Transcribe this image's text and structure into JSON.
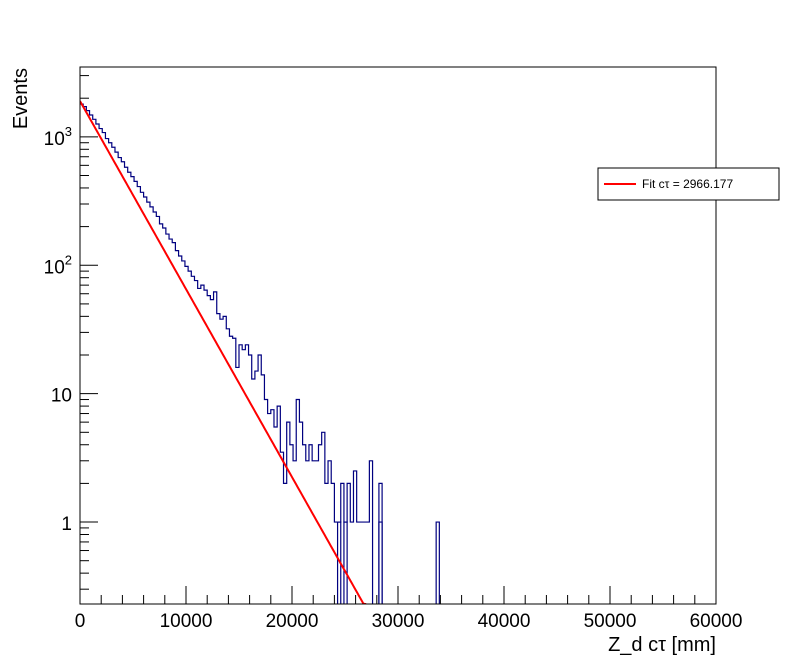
{
  "chart_data": {
    "type": "bar",
    "style": "step-histogram-with-fit",
    "title": "",
    "xlabel": "Z_d cτ [mm]",
    "ylabel": "Events",
    "xlim": [
      0,
      60000
    ],
    "ylim": [
      0.23,
      3500
    ],
    "yscale": "log",
    "grid": false,
    "x_ticks": [
      {
        "value": 0,
        "label": "0"
      },
      {
        "value": 10000,
        "label": "10000"
      },
      {
        "value": 20000,
        "label": "20000"
      },
      {
        "value": 30000,
        "label": "30000"
      },
      {
        "value": 40000,
        "label": "40000"
      },
      {
        "value": 50000,
        "label": "50000"
      },
      {
        "value": 60000,
        "label": "60000"
      }
    ],
    "y_ticks": [
      {
        "value": 1,
        "label": "1"
      },
      {
        "value": 10,
        "label": "10"
      },
      {
        "value": 100,
        "label": "10",
        "exp": "2"
      },
      {
        "value": 1000,
        "label": "10",
        "exp": "3"
      }
    ],
    "histogram": {
      "name": "Z_d cτ",
      "color": "#000080",
      "bin_edges_start": 0,
      "bin_width": 300,
      "values": [
        1800,
        1720,
        1600,
        1480,
        1370,
        1260,
        1160,
        1080,
        970,
        900,
        830,
        760,
        690,
        640,
        580,
        530,
        490,
        450,
        410,
        370,
        340,
        310,
        285,
        260,
        240,
        210,
        195,
        175,
        160,
        150,
        130,
        118,
        108,
        98,
        90,
        82,
        76,
        66,
        70,
        64,
        58,
        54,
        62,
        42,
        38,
        40,
        32,
        28,
        27,
        16,
        24,
        22,
        24,
        20,
        13,
        15,
        20,
        14,
        9,
        7,
        7.5,
        5.5,
        8,
        3.5,
        2,
        6,
        4,
        3,
        9,
        6,
        4,
        3,
        4,
        3,
        3,
        4,
        5,
        2,
        3,
        2,
        1,
        1,
        2,
        1,
        2,
        1,
        2.5,
        1,
        1,
        1,
        1,
        3,
        0,
        0,
        1,
        0,
        0,
        0,
        0,
        0,
        0,
        0,
        0,
        0,
        0,
        0,
        0,
        0,
        0,
        0,
        0,
        0,
        0,
        0,
        0,
        0,
        0,
        0,
        0,
        0,
        0,
        0,
        0,
        0,
        0,
        0,
        0,
        0,
        0,
        0,
        0,
        0,
        0,
        0,
        0,
        0,
        0,
        0,
        0,
        0,
        0,
        0,
        0,
        0,
        0,
        0,
        0,
        0,
        0,
        0,
        0,
        0,
        0,
        0,
        0,
        0,
        0,
        0,
        0,
        0,
        0,
        0,
        0,
        0,
        0,
        0,
        0,
        0,
        0,
        0,
        0,
        0,
        0,
        0,
        0,
        0,
        0,
        0,
        0,
        0,
        0,
        0,
        0,
        0,
        0,
        0,
        0,
        0,
        0,
        0,
        0,
        0,
        0,
        0,
        0,
        0,
        0,
        0,
        0,
        0,
        0,
        0,
        0,
        0,
        0,
        0,
        0,
        0,
        0,
        0,
        0,
        0,
        0,
        0,
        0,
        0,
        0,
        0,
        0,
        0,
        0,
        0,
        0,
        0,
        0,
        0,
        0,
        0,
        0,
        0,
        0,
        0,
        0,
        0,
        0,
        0,
        0,
        0,
        0,
        0,
        0,
        0,
        0,
        0,
        0,
        0,
        0,
        0
      ],
      "spikes": [
        {
          "x": 24300,
          "value": 1
        },
        {
          "x": 24900,
          "value": 1
        },
        {
          "x": 28200,
          "value": 2
        },
        {
          "x": 33600,
          "value": 1
        }
      ]
    },
    "fit": {
      "type": "exponential",
      "color": "#ff0000",
      "amplitude": 1900,
      "ctau": 2966.177,
      "x_start": 0,
      "x_end": 27000
    },
    "legend": {
      "position": "top-right",
      "entries": [
        {
          "label": "Fit cτ = 2966.177",
          "color": "#ff0000"
        }
      ]
    }
  }
}
